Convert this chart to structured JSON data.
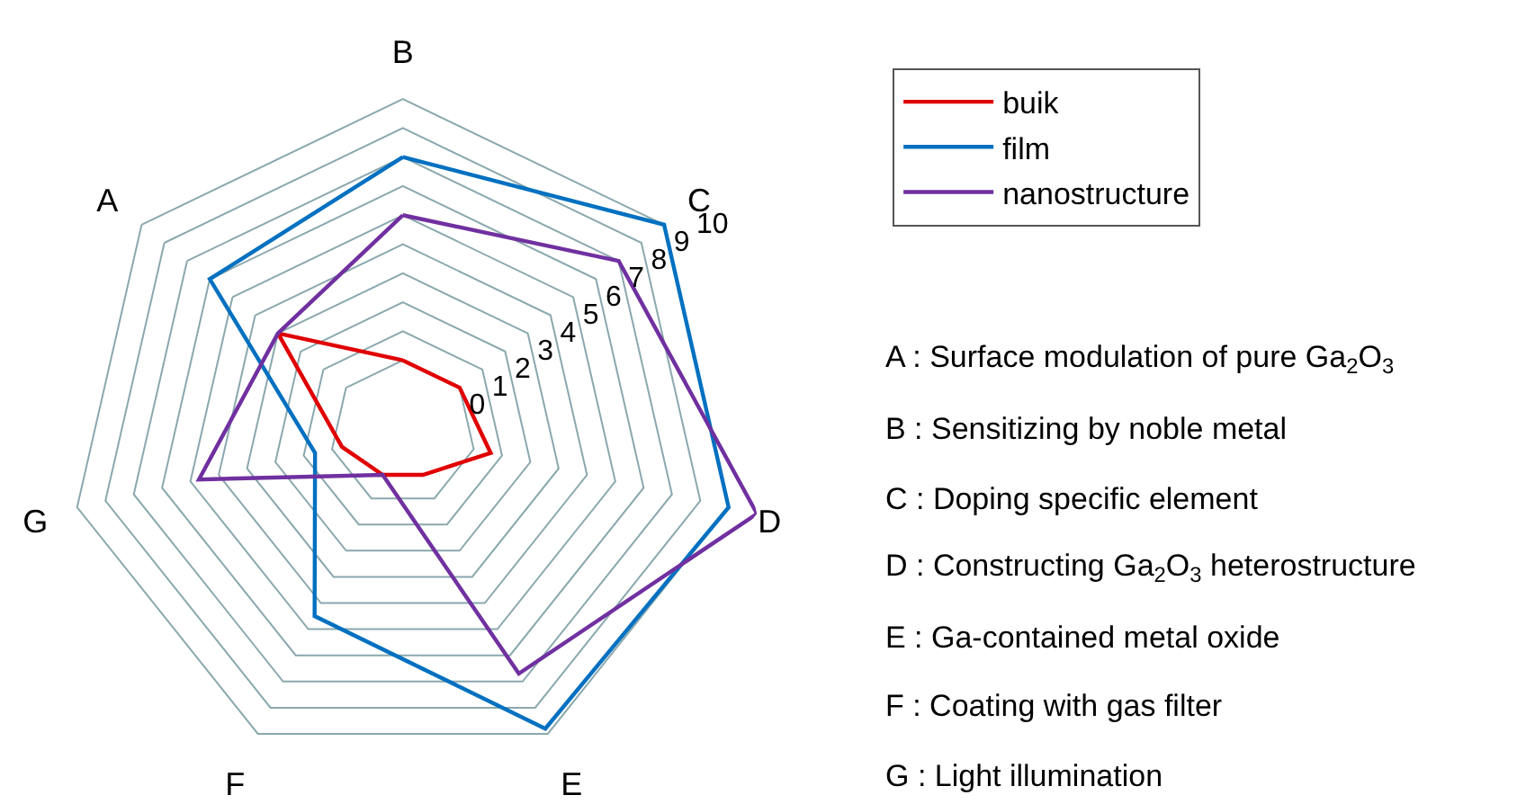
{
  "chart_data": {
    "type": "radar",
    "categories": [
      "B",
      "C",
      "D",
      "E",
      "F",
      "G",
      "A"
    ],
    "series": [
      {
        "name": "buik",
        "color": "#e00000",
        "values": [
          0,
          0,
          0.6,
          -0.9,
          -0.9,
          -0.35,
          3
        ]
      },
      {
        "name": "film",
        "color": "#0070c0",
        "values": [
          7,
          9,
          9,
          8.8,
          4.5,
          0.6,
          6
        ]
      },
      {
        "name": "nanostructure",
        "color": "#7030a0",
        "values": [
          5,
          7,
          10,
          6.7,
          -0.9,
          4.7,
          3
        ]
      }
    ],
    "ylim": [
      -2.5,
      10
    ],
    "yticks": [
      0,
      1,
      2,
      3,
      4,
      5,
      6,
      7,
      8,
      9,
      10
    ],
    "grid": true,
    "legend": "top right",
    "marker": "none",
    "line_style": "solid",
    "annotations": [
      "A : Surface modulation of pure Ga$_{2}$O$_{3}$",
      "B : Sensitizing by noble metal",
      "C : Doping specific element",
      "D : Constructing Ga$_{2}$O$_{3}$ heterostructure",
      "E : Ga-contained metal oxide",
      "F : Coating with gas filter",
      "G : Light illumination"
    ]
  }
}
